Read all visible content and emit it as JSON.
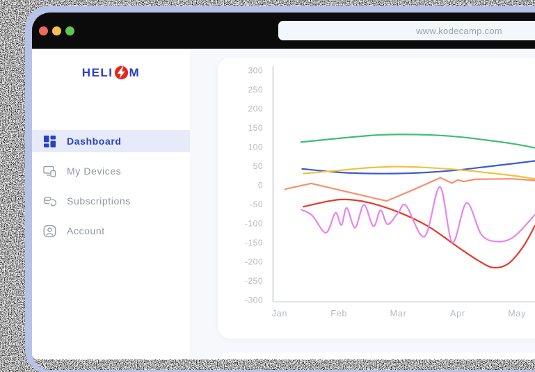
{
  "browser": {
    "url": "www.kodecamp.com"
  },
  "logo": {
    "text_pre": "HELI",
    "text_post": "M",
    "bolt_icon": "lightning-bolt",
    "blue": "#2b3fc2",
    "red": "#e8251d"
  },
  "sidebar": {
    "items": [
      {
        "id": "dashboard",
        "label": "Dashboard",
        "icon": "dashboard-grid-icon",
        "active": true
      },
      {
        "id": "my-devices",
        "label": "My Devices",
        "icon": "devices-icon",
        "active": false
      },
      {
        "id": "subscriptions",
        "label": "Subscriptions",
        "icon": "subscription-renewal-icon",
        "active": false
      },
      {
        "id": "account",
        "label": "Account",
        "icon": "account-user-icon",
        "active": false
      }
    ],
    "active_color": "#2742c4",
    "inactive_color": "#8f969f",
    "active_bg": "#e7eaf8"
  },
  "window_colors": {
    "frame": "#b6c3e6",
    "titlebar": "#0b0b0c",
    "traffic_close": "#ed6a5e",
    "traffic_minimize": "#f4bf4f",
    "traffic_maximize": "#61c455",
    "main_bg": "#f7f8fb",
    "card_bg": "#ffffff"
  },
  "chart_data": {
    "type": "line",
    "title": "",
    "xlabel": "",
    "ylabel": "",
    "x_categories": [
      "Jan",
      "Feb",
      "Mar",
      "Apr",
      "May"
    ],
    "ylim": [
      -300,
      300
    ],
    "y_ticks": [
      300,
      250,
      200,
      150,
      100,
      50,
      0,
      -50,
      -100,
      -150,
      -200,
      -250,
      -300
    ],
    "grid": false,
    "legend": "none",
    "axis_text_color": "#b4bac1",
    "axis_line_color": "#d9dce1",
    "series": [
      {
        "name": "green",
        "color": "#3fbe73",
        "smooth": true,
        "points": [
          [
            0.36,
            112
          ],
          [
            1,
            122
          ],
          [
            1.6,
            130
          ],
          [
            2,
            132
          ],
          [
            2.5,
            131
          ],
          [
            3,
            126
          ],
          [
            3.5,
            117
          ],
          [
            4,
            106
          ],
          [
            4.3,
            97
          ]
        ]
      },
      {
        "name": "blue",
        "color": "#3b5bd6",
        "smooth": true,
        "points": [
          [
            0.38,
            42
          ],
          [
            1,
            33
          ],
          [
            1.5,
            30
          ],
          [
            2,
            30
          ],
          [
            2.5,
            33
          ],
          [
            3,
            39
          ],
          [
            3.5,
            48
          ],
          [
            4,
            57
          ],
          [
            4.3,
            63
          ]
        ]
      },
      {
        "name": "yellow",
        "color": "#f2c23d",
        "smooth": true,
        "points": [
          [
            0.4,
            30
          ],
          [
            1,
            38
          ],
          [
            1.5,
            45
          ],
          [
            2,
            48
          ],
          [
            2.4,
            46
          ],
          [
            3,
            40
          ],
          [
            3.5,
            32
          ],
          [
            4,
            23
          ],
          [
            4.3,
            16
          ]
        ]
      },
      {
        "name": "orange",
        "color": "#f98f6d",
        "smooth": false,
        "points": [
          [
            0.09,
            -11
          ],
          [
            0.53,
            4
          ],
          [
            1.0,
            -13
          ],
          [
            1.8,
            -42
          ],
          [
            2.2,
            -16
          ],
          [
            2.71,
            19
          ],
          [
            2.9,
            5
          ],
          [
            3.0,
            13
          ],
          [
            3.1,
            9
          ],
          [
            3.3,
            15
          ],
          [
            3.9,
            16
          ],
          [
            4.3,
            12
          ]
        ]
      },
      {
        "name": "red",
        "color": "#ea3829",
        "smooth": true,
        "points": [
          [
            0.4,
            -57
          ],
          [
            0.8,
            -43
          ],
          [
            1.1,
            -38
          ],
          [
            1.5,
            -46
          ],
          [
            2.0,
            -71
          ],
          [
            2.5,
            -108
          ],
          [
            3.0,
            -162
          ],
          [
            3.35,
            -198
          ],
          [
            3.6,
            -216
          ],
          [
            3.85,
            -206
          ],
          [
            4.1,
            -162
          ],
          [
            4.3,
            -107
          ]
        ]
      },
      {
        "name": "violet",
        "color": "#e884ec",
        "smooth": true,
        "points": [
          [
            0.37,
            -65
          ],
          [
            0.55,
            -80
          ],
          [
            0.78,
            -125
          ],
          [
            0.94,
            -73
          ],
          [
            1.04,
            -105
          ],
          [
            1.13,
            -60
          ],
          [
            1.27,
            -112
          ],
          [
            1.42,
            -52
          ],
          [
            1.58,
            -108
          ],
          [
            1.7,
            -66
          ],
          [
            1.82,
            -103
          ],
          [
            2.0,
            -72
          ],
          [
            2.13,
            -54
          ],
          [
            2.44,
            -135
          ],
          [
            2.7,
            -5
          ],
          [
            2.91,
            -150
          ],
          [
            3.15,
            -47
          ],
          [
            3.4,
            -130
          ],
          [
            3.67,
            -148
          ],
          [
            3.95,
            -135
          ],
          [
            4.3,
            -78
          ]
        ]
      }
    ]
  }
}
